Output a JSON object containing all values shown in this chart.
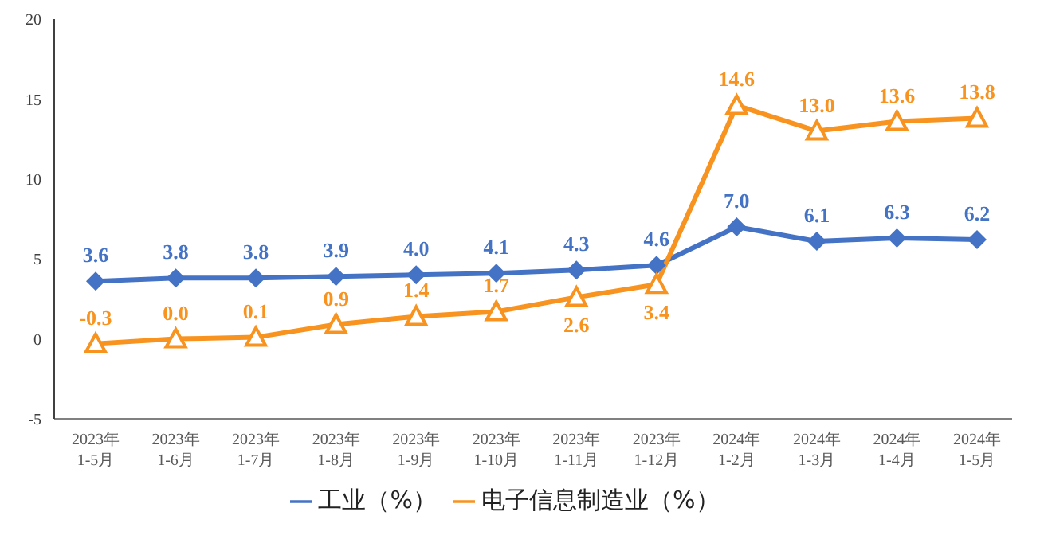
{
  "chart_data": {
    "type": "line",
    "categories": [
      "2023年\n1-5月",
      "2023年\n1-6月",
      "2023年\n1-7月",
      "2023年\n1-8月",
      "2023年\n1-9月",
      "2023年\n1-10月",
      "2023年\n1-11月",
      "2023年\n1-12月",
      "2024年\n1-2月",
      "2024年\n1-3月",
      "2024年\n1-4月",
      "2024年\n1-5月"
    ],
    "series": [
      {
        "name": "工业（%）",
        "color": "#4472c4",
        "marker": "diamond",
        "values": [
          3.6,
          3.8,
          3.8,
          3.9,
          4.0,
          4.1,
          4.3,
          4.6,
          7.0,
          6.1,
          6.3,
          6.2
        ],
        "value_labels": [
          "3.6",
          "3.8",
          "3.8",
          "3.9",
          "4.0",
          "4.1",
          "4.3",
          "4.6",
          "7.0",
          "6.1",
          "6.3",
          "6.2"
        ]
      },
      {
        "name": "电子信息制造业（%）",
        "color": "#f7931e",
        "marker": "triangle",
        "values": [
          -0.3,
          0.0,
          0.1,
          0.9,
          1.4,
          1.7,
          2.6,
          3.4,
          14.6,
          13.0,
          13.6,
          13.8
        ],
        "value_labels": [
          "-0.3",
          "0.0",
          "0.1",
          "0.9",
          "1.4",
          "1.7",
          "2.6",
          "3.4",
          "14.6",
          "13.0",
          "13.6",
          "13.8"
        ]
      }
    ],
    "ylim": [
      -5,
      20
    ],
    "yticks": [
      -5,
      0,
      5,
      10,
      15,
      20
    ],
    "grid": false,
    "legend": "bottom",
    "line_style": "solid"
  }
}
